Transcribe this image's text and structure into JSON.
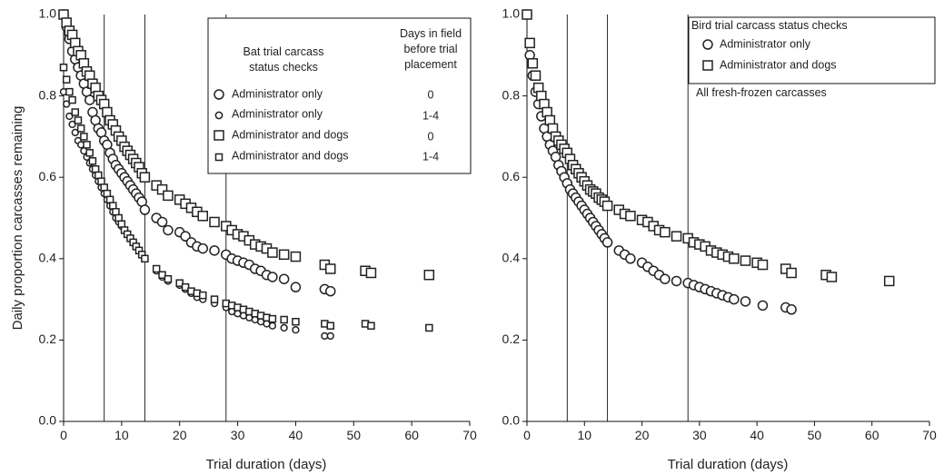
{
  "chart_data": [
    {
      "type": "scatter",
      "xlabel": "Trial duration (days)",
      "ylabel": "Daily proportion carcasses remaining",
      "xlim": [
        0,
        70
      ],
      "ylim": [
        0,
        1
      ],
      "xticks": [
        "0",
        "10",
        "20",
        "30",
        "40",
        "50",
        "60",
        "70"
      ],
      "yticks": [
        "0.0",
        "0.2",
        "0.4",
        "0.6",
        "0.8",
        "1.0"
      ],
      "reference_lines_x": [
        7,
        14,
        28
      ],
      "grid": false,
      "legend": {
        "placement": "top-right",
        "title_lines": [
          "Bat trial carcass",
          "status checks"
        ],
        "column_header_lines": [
          "Days in field",
          "before trial",
          "placement"
        ],
        "entries": [
          {
            "label": "Administrator only",
            "days": "0",
            "marker": "circle-large"
          },
          {
            "label": "Administrator only",
            "days": "1-4",
            "marker": "circle-small"
          },
          {
            "label": "Administrator and dogs",
            "days": "0",
            "marker": "square-large"
          },
          {
            "label": "Administrator and dogs",
            "days": "1-4",
            "marker": "square-small"
          }
        ]
      },
      "series": [
        {
          "label_ref": 0,
          "marker": "circle-large",
          "x": [
            0,
            0.5,
            1,
            1.5,
            2,
            2.5,
            3,
            3.5,
            4,
            4.5,
            5,
            5.5,
            6,
            6.5,
            7,
            7.5,
            8,
            8.5,
            9,
            9.5,
            10,
            10.5,
            11,
            11.5,
            12,
            12.5,
            13,
            13.5,
            14,
            16,
            17,
            18,
            20,
            21,
            22,
            23,
            24,
            26,
            28,
            29,
            30,
            31,
            32,
            33,
            34,
            35,
            36,
            38,
            40,
            45,
            46
          ],
          "y": [
            1.0,
            0.97,
            0.94,
            0.91,
            0.89,
            0.87,
            0.85,
            0.83,
            0.81,
            0.79,
            0.76,
            0.74,
            0.72,
            0.71,
            0.69,
            0.68,
            0.66,
            0.645,
            0.63,
            0.62,
            0.61,
            0.6,
            0.59,
            0.58,
            0.57,
            0.56,
            0.55,
            0.54,
            0.52,
            0.5,
            0.49,
            0.47,
            0.465,
            0.455,
            0.44,
            0.43,
            0.425,
            0.42,
            0.41,
            0.4,
            0.395,
            0.39,
            0.385,
            0.375,
            0.37,
            0.36,
            0.355,
            0.35,
            0.33,
            0.325,
            0.32
          ]
        },
        {
          "label_ref": 1,
          "marker": "circle-small",
          "x": [
            0,
            0.5,
            1,
            1.5,
            2,
            2.5,
            3,
            3.5,
            4,
            4.5,
            5,
            5.5,
            6,
            6.5,
            7,
            7.5,
            8,
            8.5,
            9,
            9.5,
            10,
            10.5,
            11,
            11.5,
            12,
            12.5,
            13,
            13.5,
            14,
            16,
            17,
            18,
            20,
            21,
            22,
            23,
            24,
            26,
            28,
            29,
            30,
            31,
            32,
            33,
            34,
            35,
            36,
            38,
            40,
            45,
            46
          ],
          "y": [
            0.81,
            0.78,
            0.75,
            0.73,
            0.71,
            0.69,
            0.68,
            0.665,
            0.65,
            0.635,
            0.62,
            0.605,
            0.59,
            0.575,
            0.56,
            0.545,
            0.53,
            0.515,
            0.5,
            0.49,
            0.48,
            0.47,
            0.46,
            0.45,
            0.44,
            0.43,
            0.42,
            0.41,
            0.4,
            0.37,
            0.355,
            0.345,
            0.335,
            0.325,
            0.315,
            0.305,
            0.3,
            0.29,
            0.28,
            0.27,
            0.265,
            0.26,
            0.255,
            0.25,
            0.245,
            0.24,
            0.235,
            0.23,
            0.225,
            0.21,
            0.21
          ]
        },
        {
          "label_ref": 2,
          "marker": "square-large",
          "x": [
            0,
            0.5,
            1,
            1.5,
            2,
            2.5,
            3,
            3.5,
            4,
            4.5,
            5,
            5.5,
            6,
            6.5,
            7,
            7.5,
            8,
            8.5,
            9,
            9.5,
            10,
            10.5,
            11,
            11.5,
            12,
            12.5,
            13,
            13.5,
            14,
            16,
            17,
            18,
            20,
            21,
            22,
            23,
            24,
            26,
            28,
            29,
            30,
            31,
            32,
            33,
            34,
            35,
            36,
            38,
            40,
            45,
            46,
            52,
            53,
            63
          ],
          "y": [
            1.0,
            0.98,
            0.96,
            0.95,
            0.93,
            0.91,
            0.9,
            0.88,
            0.86,
            0.85,
            0.83,
            0.82,
            0.8,
            0.79,
            0.78,
            0.76,
            0.74,
            0.73,
            0.715,
            0.7,
            0.69,
            0.675,
            0.665,
            0.655,
            0.645,
            0.635,
            0.625,
            0.61,
            0.6,
            0.58,
            0.57,
            0.555,
            0.545,
            0.535,
            0.525,
            0.515,
            0.505,
            0.49,
            0.48,
            0.47,
            0.46,
            0.455,
            0.445,
            0.435,
            0.43,
            0.425,
            0.415,
            0.41,
            0.405,
            0.385,
            0.375,
            0.37,
            0.365,
            0.36
          ]
        },
        {
          "label_ref": 3,
          "marker": "square-small",
          "x": [
            0,
            0.5,
            1,
            1.5,
            2,
            2.5,
            3,
            3.5,
            4,
            4.5,
            5,
            5.5,
            6,
            6.5,
            7,
            7.5,
            8,
            8.5,
            9,
            9.5,
            10,
            10.5,
            11,
            11.5,
            12,
            12.5,
            13,
            13.5,
            14,
            16,
            17,
            18,
            20,
            21,
            22,
            23,
            24,
            26,
            28,
            29,
            30,
            31,
            32,
            33,
            34,
            35,
            36,
            38,
            40,
            45,
            46,
            52,
            53,
            63
          ],
          "y": [
            0.87,
            0.84,
            0.81,
            0.79,
            0.76,
            0.74,
            0.72,
            0.7,
            0.68,
            0.66,
            0.64,
            0.62,
            0.605,
            0.59,
            0.575,
            0.56,
            0.545,
            0.53,
            0.515,
            0.5,
            0.485,
            0.47,
            0.46,
            0.45,
            0.44,
            0.43,
            0.42,
            0.41,
            0.4,
            0.375,
            0.36,
            0.35,
            0.34,
            0.33,
            0.32,
            0.315,
            0.31,
            0.3,
            0.29,
            0.285,
            0.28,
            0.275,
            0.27,
            0.265,
            0.26,
            0.255,
            0.252,
            0.25,
            0.245,
            0.24,
            0.235,
            0.24,
            0.235,
            0.23
          ]
        }
      ]
    },
    {
      "type": "scatter",
      "xlabel": "Trial duration (days)",
      "ylabel": "",
      "xlim": [
        0,
        70
      ],
      "ylim": [
        0,
        1
      ],
      "xticks": [
        "0",
        "10",
        "20",
        "30",
        "40",
        "50",
        "60",
        "70"
      ],
      "yticks": [
        "0.0",
        "0.2",
        "0.4",
        "0.6",
        "0.8",
        "1.0"
      ],
      "reference_lines_x": [
        7,
        14,
        28
      ],
      "grid": false,
      "legend": {
        "placement": "top-right",
        "title_lines": [
          "Bird trial carcass status checks"
        ],
        "entries": [
          {
            "label": "Administrator only",
            "marker": "circle-large"
          },
          {
            "label": "Administrator and dogs",
            "marker": "square-large"
          }
        ],
        "note": "All fresh-frozen carcasses"
      },
      "series": [
        {
          "label_ref": 0,
          "marker": "circle-large",
          "x": [
            0,
            0.5,
            1,
            1.5,
            2,
            2.5,
            3,
            3.5,
            4,
            4.5,
            5,
            5.5,
            6,
            6.5,
            7,
            7.5,
            8,
            8.5,
            9,
            9.5,
            10,
            10.5,
            11,
            11.5,
            12,
            12.5,
            13,
            13.5,
            14,
            16,
            17,
            18,
            20,
            21,
            22,
            23,
            24,
            26,
            28,
            29,
            30,
            31,
            32,
            33,
            34,
            35,
            36,
            38,
            41,
            45,
            46
          ],
          "y": [
            1.0,
            0.9,
            0.85,
            0.81,
            0.78,
            0.75,
            0.72,
            0.7,
            0.68,
            0.665,
            0.65,
            0.63,
            0.615,
            0.6,
            0.585,
            0.57,
            0.56,
            0.55,
            0.54,
            0.53,
            0.52,
            0.51,
            0.5,
            0.49,
            0.48,
            0.47,
            0.46,
            0.45,
            0.44,
            0.42,
            0.41,
            0.4,
            0.39,
            0.38,
            0.37,
            0.36,
            0.35,
            0.345,
            0.34,
            0.335,
            0.33,
            0.325,
            0.32,
            0.315,
            0.31,
            0.305,
            0.3,
            0.295,
            0.285,
            0.28,
            0.275
          ]
        },
        {
          "label_ref": 1,
          "marker": "square-large",
          "x": [
            0,
            0.5,
            1,
            1.5,
            2,
            2.5,
            3,
            3.5,
            4,
            4.5,
            5,
            5.5,
            6,
            6.5,
            7,
            7.5,
            8,
            8.5,
            9,
            9.5,
            10,
            10.5,
            11,
            11.5,
            12,
            12.5,
            13,
            13.5,
            14,
            16,
            17,
            18,
            20,
            21,
            22,
            23,
            24,
            26,
            28,
            29,
            30,
            31,
            32,
            33,
            34,
            35,
            36,
            38,
            40,
            41,
            45,
            46,
            52,
            53,
            63
          ],
          "y": [
            1.0,
            0.93,
            0.88,
            0.85,
            0.82,
            0.8,
            0.78,
            0.76,
            0.74,
            0.72,
            0.7,
            0.69,
            0.68,
            0.67,
            0.66,
            0.645,
            0.63,
            0.62,
            0.61,
            0.6,
            0.59,
            0.58,
            0.57,
            0.565,
            0.56,
            0.55,
            0.545,
            0.54,
            0.53,
            0.52,
            0.51,
            0.505,
            0.495,
            0.49,
            0.48,
            0.47,
            0.465,
            0.455,
            0.45,
            0.44,
            0.435,
            0.43,
            0.42,
            0.415,
            0.41,
            0.405,
            0.4,
            0.395,
            0.39,
            0.385,
            0.375,
            0.365,
            0.36,
            0.355,
            0.345
          ]
        }
      ]
    }
  ]
}
